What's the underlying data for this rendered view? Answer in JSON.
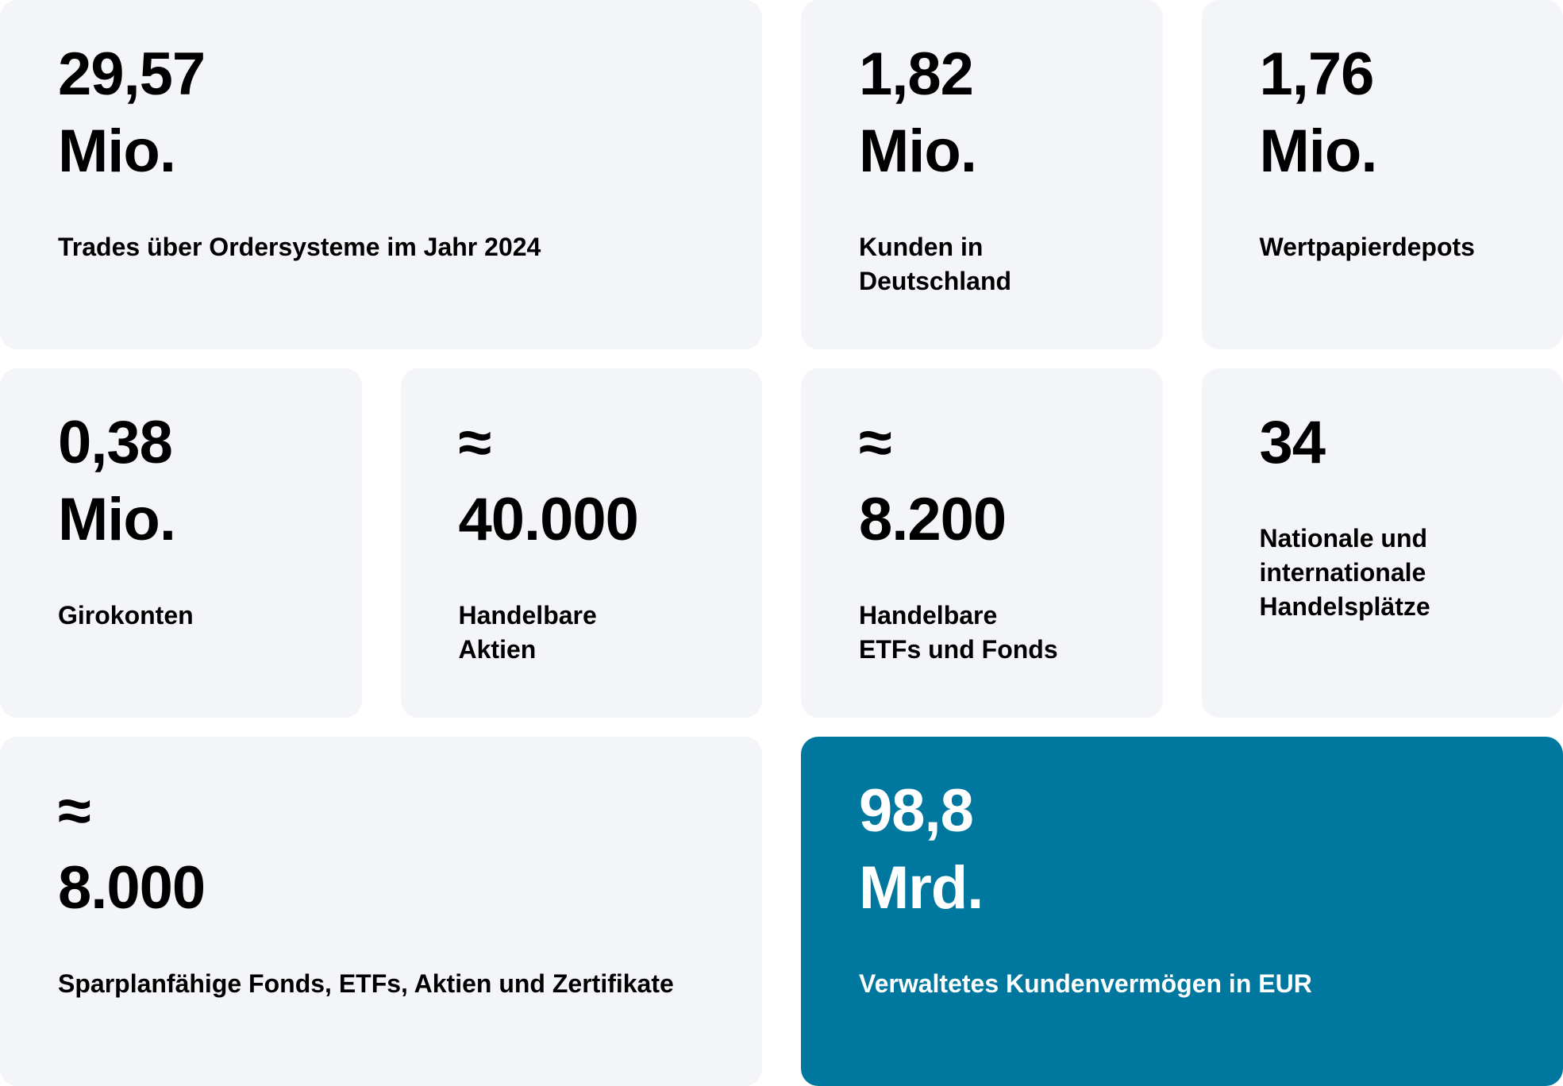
{
  "cards": [
    {
      "lines": [
        "29,57",
        "Mio."
      ],
      "label": [
        "Trades über Ordersysteme im Jahr 2024"
      ],
      "span": 2,
      "background": "#f4f5f9",
      "color": "#000000"
    },
    {
      "lines": [
        "1,82",
        "Mio."
      ],
      "label": [
        "Kunden in",
        "Deutschland"
      ],
      "span": 1,
      "background": "#f4f5f9",
      "color": "#000000"
    },
    {
      "lines": [
        "1,76",
        "Mio."
      ],
      "label": [
        "Wertpapierdepots"
      ],
      "span": 1,
      "background": "#f4f5f9",
      "color": "#000000"
    },
    {
      "lines": [
        "0,38",
        "Mio."
      ],
      "label": [
        "Girokonten"
      ],
      "span": 1,
      "background": "#f4f5f9",
      "color": "#000000"
    },
    {
      "lines": [
        "≈",
        "40.000"
      ],
      "label": [
        "Handelbare",
        "Aktien"
      ],
      "span": 1,
      "background": "#f4f5f9",
      "color": "#000000"
    },
    {
      "lines": [
        "≈",
        "8.200"
      ],
      "label": [
        "Handelbare",
        "ETFs und Fonds"
      ],
      "span": 1,
      "background": "#f4f5f9",
      "color": "#000000"
    },
    {
      "lines": [
        "34"
      ],
      "label": [
        "Nationale und",
        "internationale",
        "Handelsplätze"
      ],
      "span": 1,
      "background": "#f4f5f9",
      "color": "#000000"
    },
    {
      "lines": [
        "≈",
        "8.000"
      ],
      "label": [
        "Sparplanfähige Fonds, ETFs, Aktien und Zertifikate"
      ],
      "span": 2,
      "background": "#f4f5f9",
      "color": "#000000"
    },
    {
      "lines": [
        "98,8",
        "Mrd."
      ],
      "label": [
        "Verwaltetes Kundenvermögen in EUR"
      ],
      "span": 2,
      "background": "#00779f",
      "color": "#ffffff"
    }
  ]
}
